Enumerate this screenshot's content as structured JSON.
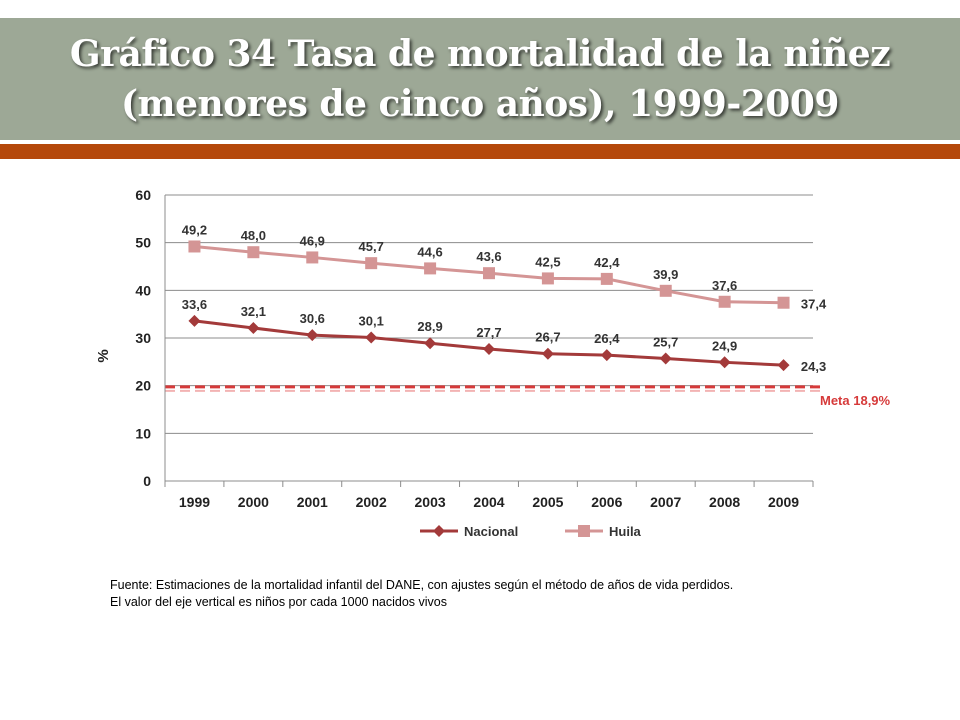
{
  "slide": {
    "title": "Gráfico 34 Tasa de mortalidad de la niñez (menores de cinco años), 1999-2009"
  },
  "chart_data": {
    "type": "line",
    "categories": [
      "1999",
      "2000",
      "2001",
      "2002",
      "2003",
      "2004",
      "2005",
      "2006",
      "2007",
      "2008",
      "2009"
    ],
    "series": [
      {
        "name": "Nacional",
        "values": [
          33.6,
          32.1,
          30.6,
          30.1,
          28.9,
          27.7,
          26.7,
          26.4,
          25.7,
          24.9,
          24.3
        ],
        "labels": [
          "33,6",
          "32,1",
          "30,6",
          "30,1",
          "28,9",
          "27,7",
          "26,7",
          "26,4",
          "25,7",
          "24,9",
          "24,3"
        ],
        "color": "#a33a3a",
        "marker": "diamond"
      },
      {
        "name": "Huila",
        "values": [
          49.2,
          48.0,
          46.9,
          45.7,
          44.6,
          43.6,
          42.5,
          42.4,
          39.9,
          37.6,
          37.4
        ],
        "labels": [
          "49,2",
          "48,0",
          "46,9",
          "45,7",
          "44,6",
          "43,6",
          "42,5",
          "42,4",
          "39,9",
          "37,6",
          "37,4"
        ],
        "color": "#d49595",
        "marker": "square"
      }
    ],
    "reference_line": {
      "label": "Meta 18,9%",
      "value": 18.9,
      "color": "#d63a3a",
      "style": "dashed"
    },
    "ylabel": "%",
    "xlabel": "",
    "ylim": [
      0,
      60
    ],
    "yticks": [
      0,
      10,
      20,
      30,
      40,
      50,
      60
    ],
    "grid": true,
    "legend_position": "bottom"
  },
  "notes": {
    "source": "Fuente: Estimaciones de la mortalidad infantil del DANE, con ajustes según el método de años de vida perdidos.",
    "axis_note": "El valor del eje vertical es niños por cada 1000 nacidos vivos"
  }
}
